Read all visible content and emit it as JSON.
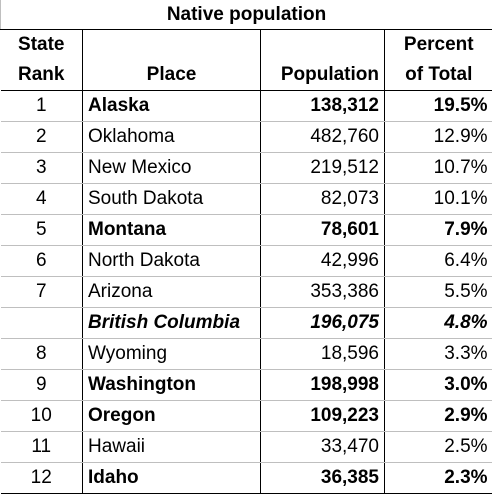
{
  "title": "Native population",
  "headers": {
    "rank_line1": "State",
    "rank_line2": "Rank",
    "place": "Place",
    "population": "Population",
    "pct_line1": "Percent",
    "pct_line2": "of Total"
  },
  "rows": [
    {
      "rank": "1",
      "place": "Alaska",
      "population": "138,312",
      "percent": "19.5%",
      "style": "bold"
    },
    {
      "rank": "2",
      "place": "Oklahoma",
      "population": "482,760",
      "percent": "12.9%",
      "style": "normal"
    },
    {
      "rank": "3",
      "place": "New Mexico",
      "population": "219,512",
      "percent": "10.7%",
      "style": "normal"
    },
    {
      "rank": "4",
      "place": "South Dakota",
      "population": "82,073",
      "percent": "10.1%",
      "style": "normal"
    },
    {
      "rank": "5",
      "place": "Montana",
      "population": "78,601",
      "percent": "7.9%",
      "style": "bold"
    },
    {
      "rank": "6",
      "place": "North Dakota",
      "population": "42,996",
      "percent": "6.4%",
      "style": "normal"
    },
    {
      "rank": "7",
      "place": "Arizona",
      "population": "353,386",
      "percent": "5.5%",
      "style": "normal"
    },
    {
      "rank": "",
      "place": "British Columbia",
      "population": "196,075",
      "percent": "4.8%",
      "style": "bold-italic"
    },
    {
      "rank": "8",
      "place": "Wyoming",
      "population": "18,596",
      "percent": "3.3%",
      "style": "normal"
    },
    {
      "rank": "9",
      "place": "Washington",
      "population": "198,998",
      "percent": "3.0%",
      "style": "bold"
    },
    {
      "rank": "10",
      "place": "Oregon",
      "population": "109,223",
      "percent": "2.9%",
      "style": "bold"
    },
    {
      "rank": "11",
      "place": "Hawaii",
      "population": "33,470",
      "percent": "2.5%",
      "style": "normal"
    },
    {
      "rank": "12",
      "place": "Idaho",
      "population": "36,385",
      "percent": "2.3%",
      "style": "bold"
    }
  ]
}
